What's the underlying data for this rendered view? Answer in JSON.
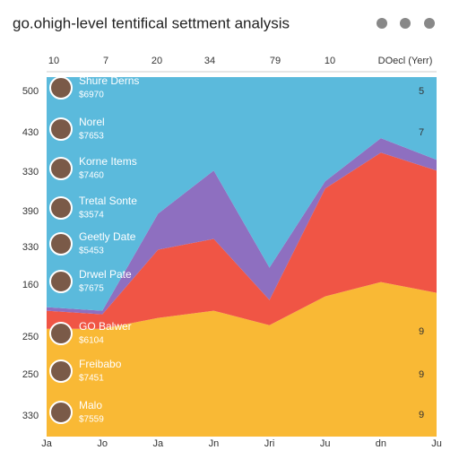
{
  "chart_data": {
    "type": "area",
    "stacked": true,
    "title": "go.ohigh-level tentifical settment analysis",
    "top_labels": [
      "10",
      "7",
      "20",
      "34",
      "79",
      "10",
      "DOecl (Yerr)"
    ],
    "categories": [
      "Ja",
      "Jo",
      "Ja",
      "Jn",
      "Jri",
      "Ju",
      "dn",
      "Ju"
    ],
    "ylim": [
      0,
      100
    ],
    "series": [
      {
        "color": "#f9b935",
        "values": [
          30,
          30,
          33,
          35,
          31,
          39,
          43,
          40
        ]
      },
      {
        "color": "#f05545",
        "values": [
          5,
          4,
          19,
          20,
          7,
          30,
          36,
          34
        ]
      },
      {
        "color": "#8e6fc0",
        "values": [
          1,
          1,
          10,
          19,
          9,
          2,
          4,
          3
        ]
      },
      {
        "color": "#5bbadc",
        "values": [
          64,
          65,
          38,
          26,
          53,
          29,
          17,
          23
        ]
      }
    ],
    "left_labels": [
      "500",
      "430",
      "330",
      "390",
      "330",
      "160",
      "250",
      "250",
      "330"
    ],
    "entries": [
      {
        "name": "Shure Derns",
        "value": "$6970"
      },
      {
        "name": "Norel",
        "value": "$7653"
      },
      {
        "name": "Korne Items",
        "value": "$7460"
      },
      {
        "name": "Tretal Sonte",
        "value": "$3574"
      },
      {
        "name": "Geetly Date",
        "value": "$5453"
      },
      {
        "name": "Drwel Pate",
        "value": "$7675"
      },
      {
        "name": "GO Balwer",
        "value": "$6104"
      },
      {
        "name": "Freibabo",
        "value": "$7451"
      },
      {
        "name": "Malo",
        "value": "$7559"
      }
    ],
    "right_labels": [
      "5",
      "7",
      "9",
      "9",
      "9"
    ]
  }
}
